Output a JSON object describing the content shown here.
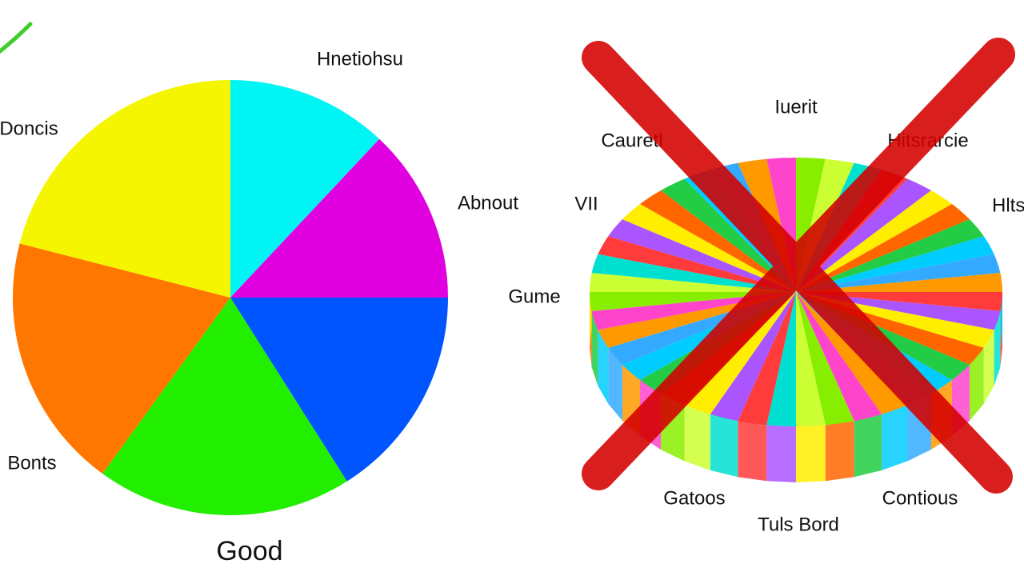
{
  "chart_data": {
    "type": "pie",
    "categories": [
      "Hnetiohsu",
      "Abnout",
      null,
      null,
      "Bonts",
      "Doncis"
    ],
    "values": [
      12,
      13,
      16,
      19,
      19,
      21
    ],
    "colors": [
      "#00f5f5",
      "#e000e0",
      "#0055ff",
      "#22ee00",
      "#ff7700",
      "#f5f500"
    ],
    "caption": "Good"
  },
  "bad_example": {
    "labels": [
      "Iuerit",
      "Cauretl",
      "Hitsrarcie",
      "VII",
      "Hlts",
      "Gume",
      "Gatoos",
      "Contious",
      "Tuls Bord"
    ]
  }
}
